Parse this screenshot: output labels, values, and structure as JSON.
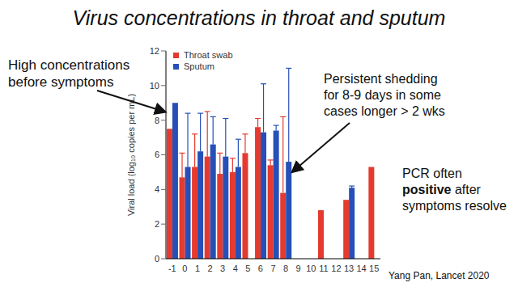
{
  "chart_data": {
    "type": "bar",
    "title": "Virus concentrations in throat and sputum",
    "y_label": "Viral load (log₁₀ copies per mL)",
    "categories": [
      "-1",
      "0",
      "1",
      "2",
      "3",
      "4",
      "5",
      "6",
      "7",
      "8",
      "9",
      "10",
      "11",
      "12",
      "13",
      "14",
      "15"
    ],
    "series": [
      {
        "name": "Throat swab",
        "color": "#e53a2f",
        "values": [
          7.5,
          4.7,
          5.3,
          5.9,
          4.9,
          5.0,
          6.1,
          7.6,
          5.4,
          3.8,
          null,
          null,
          2.8,
          null,
          3.4,
          null,
          5.3
        ],
        "errors": [
          null,
          1.4,
          1.9,
          2.6,
          1.2,
          0.8,
          1.1,
          0.5,
          0.3,
          4.4,
          null,
          null,
          null,
          null,
          null,
          null,
          null
        ]
      },
      {
        "name": "Sputum",
        "color": "#2650b8",
        "values": [
          9.0,
          5.3,
          6.2,
          6.6,
          5.9,
          5.3,
          null,
          7.3,
          7.4,
          5.6,
          null,
          null,
          null,
          null,
          4.1,
          null,
          null
        ],
        "errors": [
          null,
          3.1,
          2.2,
          1.6,
          2.2,
          1.6,
          null,
          2.8,
          0.3,
          5.4,
          null,
          null,
          null,
          null,
          0.1,
          null,
          null
        ]
      }
    ],
    "ylim": [
      0,
      12
    ],
    "yticks": [
      0,
      2,
      4,
      6,
      8,
      10,
      12
    ],
    "grid": false,
    "legend": "upper left",
    "annotations": [
      [
        "High concentrations",
        "before symptoms"
      ],
      [
        "Persistent shedding",
        "for 8-9 days in some",
        "cases longer > 2 wks"
      ],
      [
        "PCR often",
        "positive after",
        "symptoms resolve"
      ],
      [
        "Yang Pan, Lancet 2020"
      ]
    ]
  }
}
